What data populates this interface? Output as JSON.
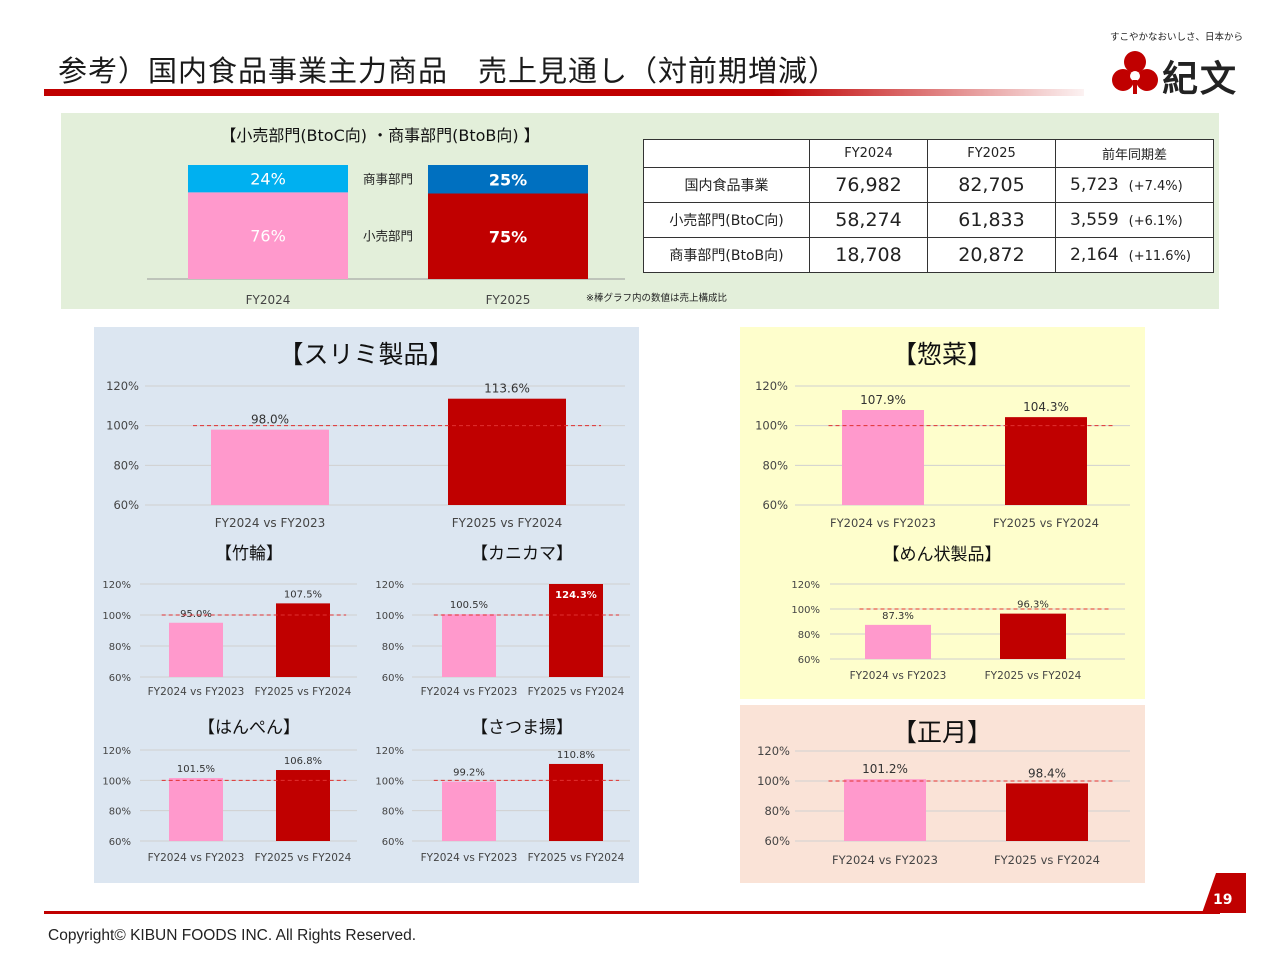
{
  "header": {
    "title": "参考）国内食品事業主力商品　売上見通し（対前期増減）",
    "tagline": "すこやかなおいしさ、日本から",
    "brand_name": "紀文"
  },
  "colors": {
    "accent_red": "#c00000",
    "bar_pink": "#ff99cc",
    "bar_red": "#c00000",
    "bar_light_blue": "#00b0f0",
    "bar_blue": "#0070c0",
    "reference_line": "#e03030"
  },
  "table": {
    "headers": [
      "",
      "FY2024",
      "FY2025",
      "前年同期差"
    ],
    "rows": [
      {
        "label": "国内食品事業",
        "fy2024": "76,982",
        "fy2025": "82,705",
        "diff": "5,723",
        "diff_pct": "(+7.4%)"
      },
      {
        "label": "小売部門(BtoC向)",
        "fy2024": "58,274",
        "fy2025": "61,833",
        "diff": "3,559",
        "diff_pct": "(+6.1%)"
      },
      {
        "label": "商事部門(BtoB向)",
        "fy2024": "18,708",
        "fy2025": "20,872",
        "diff": "2,164",
        "diff_pct": "(+11.6%)"
      }
    ]
  },
  "footer": {
    "copyright": "Copyright©  KIBUN FOODS INC. All Rights Reserved.",
    "page_number": "19"
  },
  "chart_data": [
    {
      "id": "composition",
      "type": "bar",
      "stacked": true,
      "title": "【小売部門(BtoC向) ・商事部門(BtoB向) 】",
      "categories": [
        "FY2024",
        "FY2025"
      ],
      "series": [
        {
          "name": "小売部門",
          "values": [
            76,
            75
          ],
          "labels": [
            "76%",
            "75%"
          ],
          "colors": [
            "#ff99cc",
            "#c00000"
          ]
        },
        {
          "name": "商事部門",
          "values": [
            24,
            25
          ],
          "labels": [
            "24%",
            "25%"
          ],
          "colors": [
            "#00b0f0",
            "#0070c0"
          ]
        }
      ],
      "note": "※棒グラフ内の数値は売上構成比"
    },
    {
      "id": "surimi",
      "type": "bar",
      "title": "【スリミ製品】",
      "categories": [
        "FY2024 vs FY2023",
        "FY2025  vs FY2024"
      ],
      "values": [
        98.0,
        113.6
      ],
      "value_labels": [
        "98.0%",
        "113.6%"
      ],
      "yticks": [
        "120%",
        "100%",
        "80%",
        "60%"
      ],
      "ylim": [
        60,
        120
      ],
      "reference_line": 100
    },
    {
      "id": "chikuwa",
      "type": "bar",
      "title": "【竹輪】",
      "categories": [
        "FY2024 vs FY2023",
        "FY2025  vs FY2024"
      ],
      "values": [
        95.0,
        107.5
      ],
      "value_labels": [
        "95.0%",
        "107.5%"
      ],
      "yticks": [
        "120%",
        "100%",
        "80%",
        "60%"
      ],
      "ylim": [
        60,
        120
      ],
      "reference_line": 100
    },
    {
      "id": "kanikama",
      "type": "bar",
      "title": "【カニカマ】",
      "categories": [
        "FY2024 vs FY2023",
        "FY2025  vs FY2024"
      ],
      "values": [
        100.5,
        124.3
      ],
      "value_labels": [
        "100.5%",
        "124.3%"
      ],
      "yticks": [
        "120%",
        "100%",
        "80%",
        "60%"
      ],
      "ylim": [
        60,
        120
      ],
      "reference_line": 100
    },
    {
      "id": "hanpen",
      "type": "bar",
      "title": "【はんぺん】",
      "categories": [
        "FY2024 vs FY2023",
        "FY2025  vs FY2024"
      ],
      "values": [
        101.5,
        106.8
      ],
      "value_labels": [
        "101.5%",
        "106.8%"
      ],
      "yticks": [
        "120%",
        "100%",
        "80%",
        "60%"
      ],
      "ylim": [
        60,
        120
      ],
      "reference_line": 100
    },
    {
      "id": "satsumaage",
      "type": "bar",
      "title": "【さつま揚】",
      "categories": [
        "FY2024 vs FY2023",
        "FY2025  vs FY2024"
      ],
      "values": [
        99.2,
        110.8
      ],
      "value_labels": [
        "99.2%",
        "110.8%"
      ],
      "yticks": [
        "120%",
        "100%",
        "80%",
        "60%"
      ],
      "ylim": [
        60,
        120
      ],
      "reference_line": 100
    },
    {
      "id": "sozai",
      "type": "bar",
      "title": "【惣菜】",
      "categories": [
        "FY2024 vs FY2023",
        "FY2025  vs FY2024"
      ],
      "values": [
        107.9,
        104.3
      ],
      "value_labels": [
        "107.9%",
        "104.3%"
      ],
      "yticks": [
        "120%",
        "100%",
        "80%",
        "60%"
      ],
      "ylim": [
        60,
        120
      ],
      "reference_line": 100
    },
    {
      "id": "men",
      "type": "bar",
      "title": "【めん状製品】",
      "categories": [
        "FY2024 vs FY2023",
        "FY2025  vs FY2024"
      ],
      "values": [
        87.3,
        96.3
      ],
      "value_labels": [
        "87.3%",
        "96.3%"
      ],
      "yticks": [
        "120%",
        "100%",
        "80%",
        "60%"
      ],
      "ylim": [
        60,
        120
      ],
      "reference_line": 100
    },
    {
      "id": "shogatsu",
      "type": "bar",
      "title": "【正月】",
      "categories": [
        "FY2024 vs FY2023",
        "FY2025  vs FY2024"
      ],
      "values": [
        101.2,
        98.4
      ],
      "value_labels": [
        "101.2%",
        "98.4%"
      ],
      "yticks": [
        "120%",
        "100%",
        "80%",
        "60%"
      ],
      "ylim": [
        60,
        120
      ],
      "reference_line": 100
    }
  ]
}
